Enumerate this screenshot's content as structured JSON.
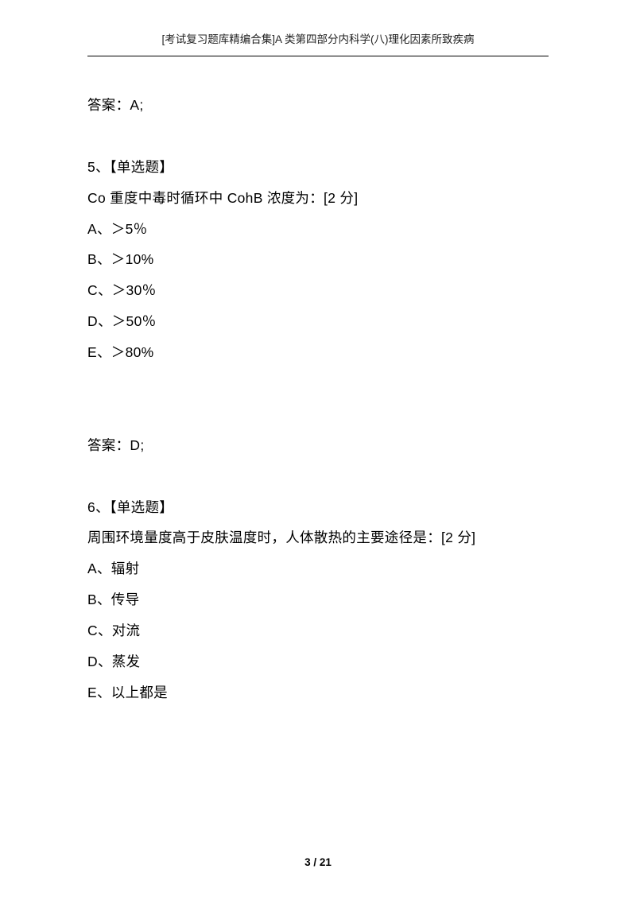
{
  "header": {
    "title": "[考试复习题库精编合集]A 类第四部分内科学(八)理化因素所致疾病"
  },
  "content": {
    "prev_answer": "答案：A;",
    "q5": {
      "number_label": "5、【单选题】",
      "stem": "Co 重度中毒时循环中 CohB 浓度为：[2 分]",
      "opt_a": "A、＞5％",
      "opt_b": "B、＞10%",
      "opt_c": "C、＞30％",
      "opt_d": "D、＞50％",
      "opt_e": "E、＞80%",
      "answer": "答案：D;"
    },
    "q6": {
      "number_label": "6、【单选题】",
      "stem": "周围环境量度高于皮肤温度时，人体散热的主要途径是：[2 分]",
      "opt_a": "A、辐射",
      "opt_b": "B、传导",
      "opt_c": "C、对流",
      "opt_d": "D、蒸发",
      "opt_e": "E、以上都是"
    }
  },
  "footer": {
    "page_indicator": "3 / 21"
  }
}
